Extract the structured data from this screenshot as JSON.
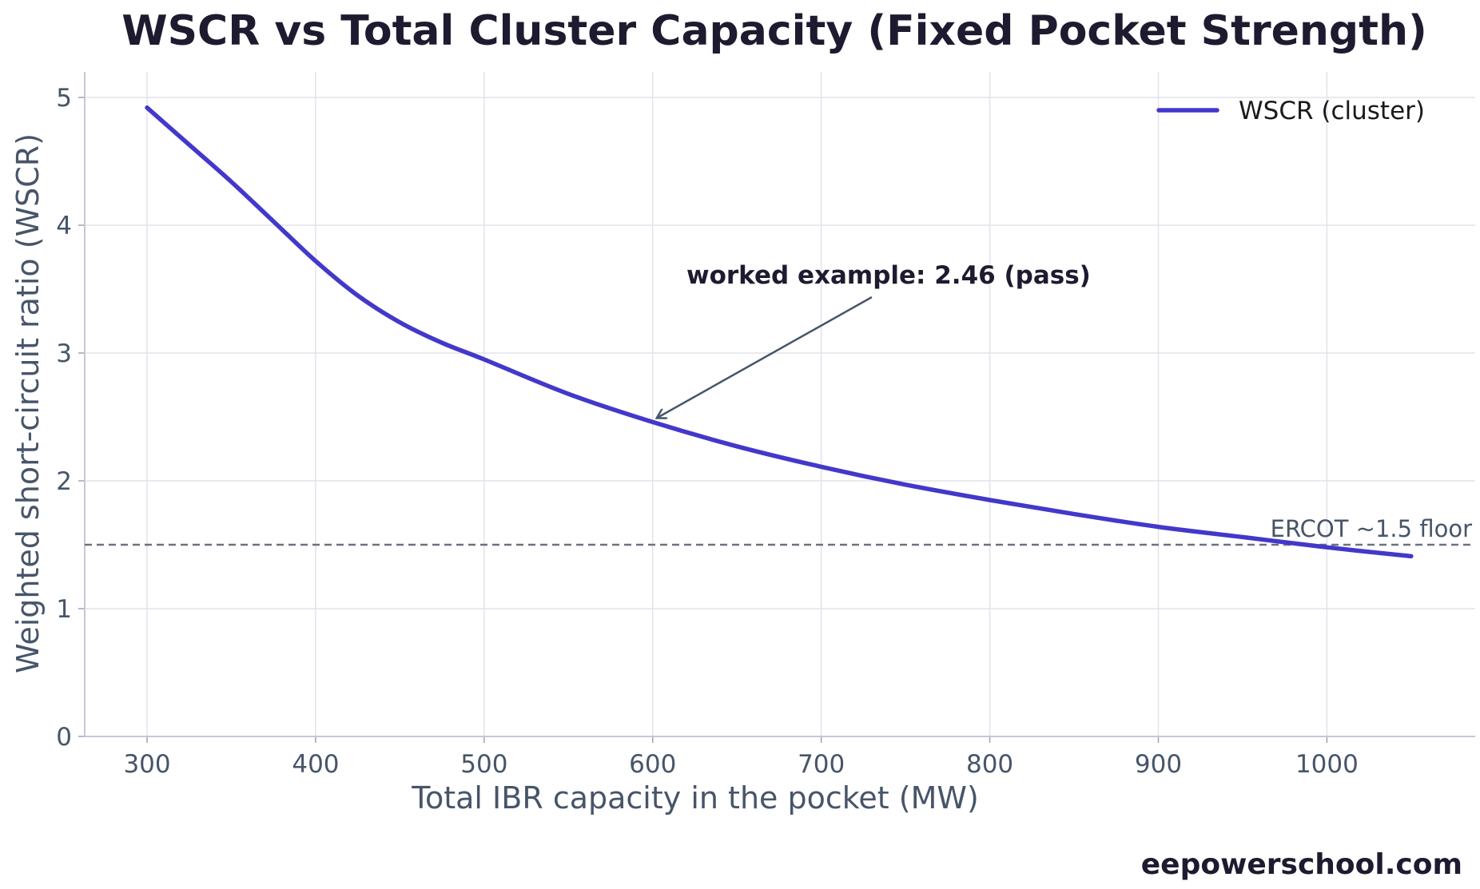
{
  "chart_data": {
    "type": "line",
    "title": "WSCR vs Total Cluster Capacity (Fixed Pocket Strength)",
    "xlabel": "Total IBR capacity in the pocket (MW)",
    "ylabel": "Weighted short-circuit ratio (WSCR)",
    "xlim": [
      263,
      1088
    ],
    "ylim": [
      0,
      5.2
    ],
    "xticks": [
      300,
      400,
      500,
      600,
      700,
      800,
      900,
      1000
    ],
    "xtick_labels": [
      "300",
      "400",
      "500",
      "600",
      "700",
      "800",
      "900",
      "1000"
    ],
    "yticks": [
      0,
      1,
      2,
      3,
      4,
      5
    ],
    "ytick_labels": [
      "0",
      "1",
      "2",
      "3",
      "4",
      "5"
    ],
    "grid": true,
    "legend_position": "top-right",
    "series": [
      {
        "name": "WSCR (cluster)",
        "color": "#4338ca",
        "x": [
          300,
          325,
          350,
          375,
          400,
          425,
          450,
          475,
          500,
          550,
          600,
          650,
          700,
          750,
          800,
          850,
          900,
          950,
          1000,
          1050
        ],
        "y": [
          4.92,
          4.63,
          4.34,
          4.03,
          3.72,
          3.45,
          3.24,
          3.08,
          2.95,
          2.68,
          2.46,
          2.27,
          2.11,
          1.97,
          1.85,
          1.74,
          1.64,
          1.56,
          1.48,
          1.41
        ]
      }
    ],
    "reference_line": {
      "y": 1.5,
      "label": "ERCOT ~1.5 floor",
      "color": "#6b7280",
      "style": "dashed"
    },
    "annotation": {
      "text": "worked example: 2.46 (pass)",
      "point_x": 600,
      "point_y": 2.46,
      "text_x": 620,
      "text_y": 3.6
    }
  },
  "watermark": "eepowerschool.com"
}
